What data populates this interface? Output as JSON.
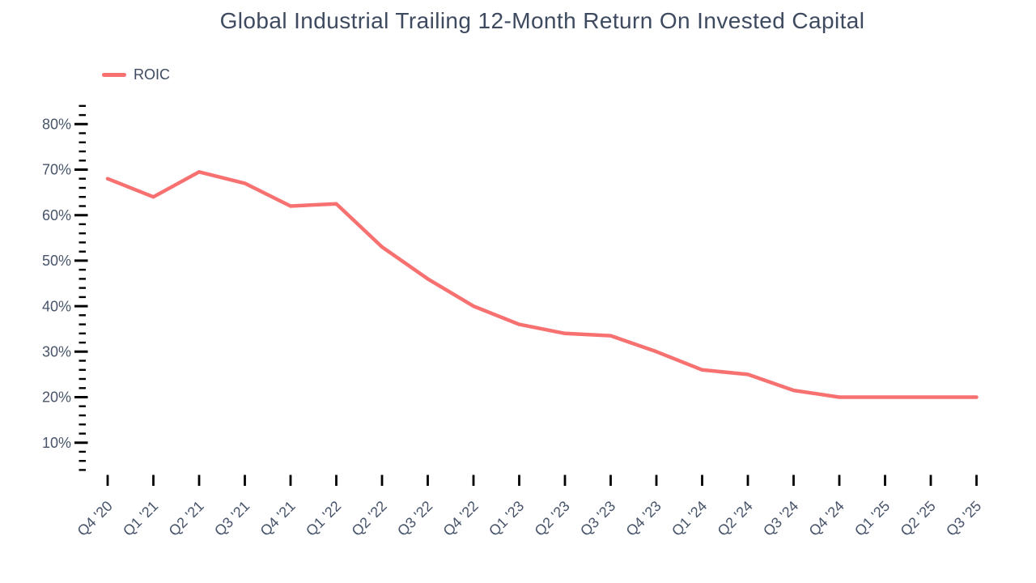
{
  "chart_data": {
    "type": "line",
    "title": "Global Industrial Trailing 12-Month Return On Invested Capital",
    "x": [
      "Q4 '20",
      "Q1 '21",
      "Q2 '21",
      "Q3 '21",
      "Q4 '21",
      "Q1 '22",
      "Q2 '22",
      "Q3 '22",
      "Q4 '22",
      "Q1 '23",
      "Q2 '23",
      "Q3 '23",
      "Q4 '23",
      "Q1 '24",
      "Q2 '24",
      "Q3 '24",
      "Q4 '24",
      "Q1 '25",
      "Q2 '25",
      "Q3 '25"
    ],
    "series": [
      {
        "name": "ROIC",
        "color": "#F87171",
        "values": [
          68,
          64,
          69.5,
          67,
          62,
          62.5,
          53,
          46,
          40,
          36,
          34,
          33.5,
          30,
          26,
          25,
          21.5,
          20,
          20,
          20,
          20
        ]
      }
    ],
    "unit": "%",
    "xlabel": "",
    "ylabel": "",
    "ylim": [
      4,
      84
    ],
    "y_major_step": 10,
    "y_minor_step": 2,
    "y_ticks": [
      {
        "value": 10,
        "label": "10%"
      },
      {
        "value": 20,
        "label": "20%"
      },
      {
        "value": 30,
        "label": "30%"
      },
      {
        "value": 40,
        "label": "40%"
      },
      {
        "value": 50,
        "label": "50%"
      },
      {
        "value": 60,
        "label": "60%"
      },
      {
        "value": 70,
        "label": "70%"
      },
      {
        "value": 80,
        "label": "80%"
      }
    ],
    "grid": false,
    "legend_position": "top-left",
    "x_tick_label_rotation_deg": -45
  },
  "colors": {
    "background": "#FFFFFF",
    "series_line": "#F87171",
    "title_text": "#3D4A5F",
    "axis_label_text": "#47546A",
    "tick_marks": "#000000"
  }
}
